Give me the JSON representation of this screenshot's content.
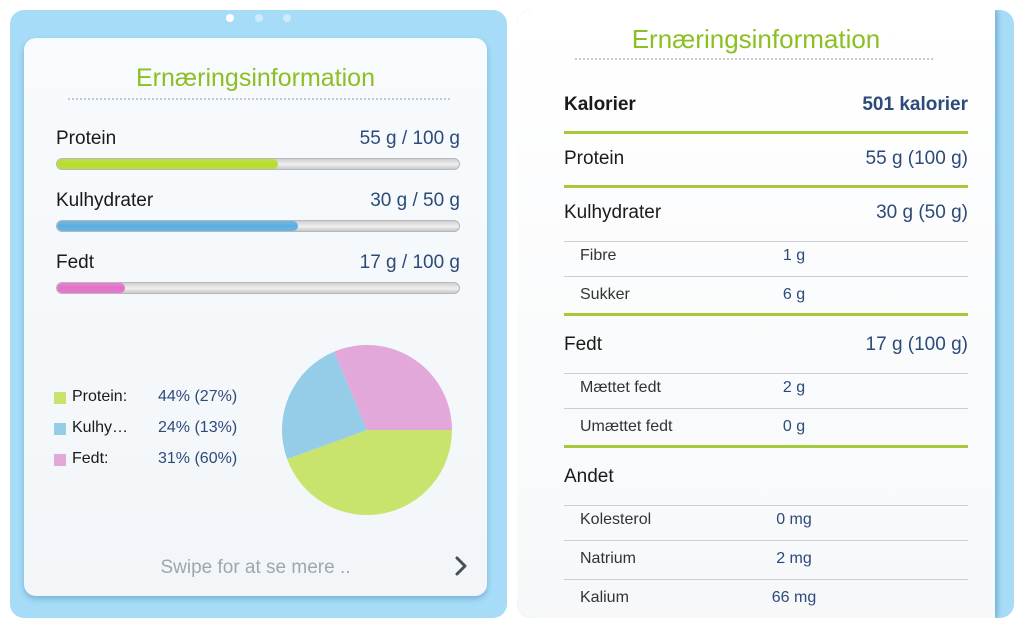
{
  "summary": {
    "page_dots": [
      true,
      false,
      false
    ],
    "title": "Ernæringsinformation",
    "metrics": [
      {
        "label": "Protein",
        "value": "55 g / 100 g",
        "fraction": 0.55,
        "color": "#b7dd2a"
      },
      {
        "label": "Kulhydrater",
        "value": "30 g / 50 g",
        "fraction": 0.6,
        "color": "#5aaee2"
      },
      {
        "label": "Fedt",
        "value": "17 g / 100 g",
        "fraction": 0.17,
        "color": "#e46fc8"
      }
    ],
    "legend": [
      {
        "name": "Protein:",
        "value": "44% (27%)",
        "color": "#c8e46c"
      },
      {
        "name": "Kulhy…",
        "value": "24% (13%)",
        "color": "#95cde8"
      },
      {
        "name": "Fedt:",
        "value": "31% (60%)",
        "color": "#e3a8da"
      }
    ],
    "swipe_hint": "Swipe for at se mere ..",
    "chevron_icon": "chevron-right-icon"
  },
  "chart_data": {
    "type": "pie",
    "title": "",
    "categories": [
      "Protein",
      "Kulhydrater",
      "Fedt"
    ],
    "values": [
      44,
      24,
      31
    ],
    "colors": [
      "#c8e46c",
      "#95cde8",
      "#e3a8da"
    ]
  },
  "details": {
    "title": "Ernæringsinformation",
    "calories": {
      "label": "Kalorier",
      "value": "501 kalorier"
    },
    "protein": {
      "label": "Protein",
      "value": "55 g (100 g)"
    },
    "carbs": {
      "label": "Kulhydrater",
      "value": "30 g (50 g)",
      "sub": [
        {
          "label": "Fibre",
          "value": "1 g"
        },
        {
          "label": "Sukker",
          "value": "6 g"
        }
      ]
    },
    "fat": {
      "label": "Fedt",
      "value": "17 g (100 g)",
      "sub": [
        {
          "label": "Mættet fedt",
          "value": "2 g"
        },
        {
          "label": "Umættet fedt",
          "value": "0 g"
        }
      ]
    },
    "other": {
      "label": "Andet",
      "sub": [
        {
          "label": "Kolesterol",
          "value": "0 mg"
        },
        {
          "label": "Natrium",
          "value": "2 mg"
        },
        {
          "label": "Kalium",
          "value": "66 mg"
        }
      ]
    }
  }
}
